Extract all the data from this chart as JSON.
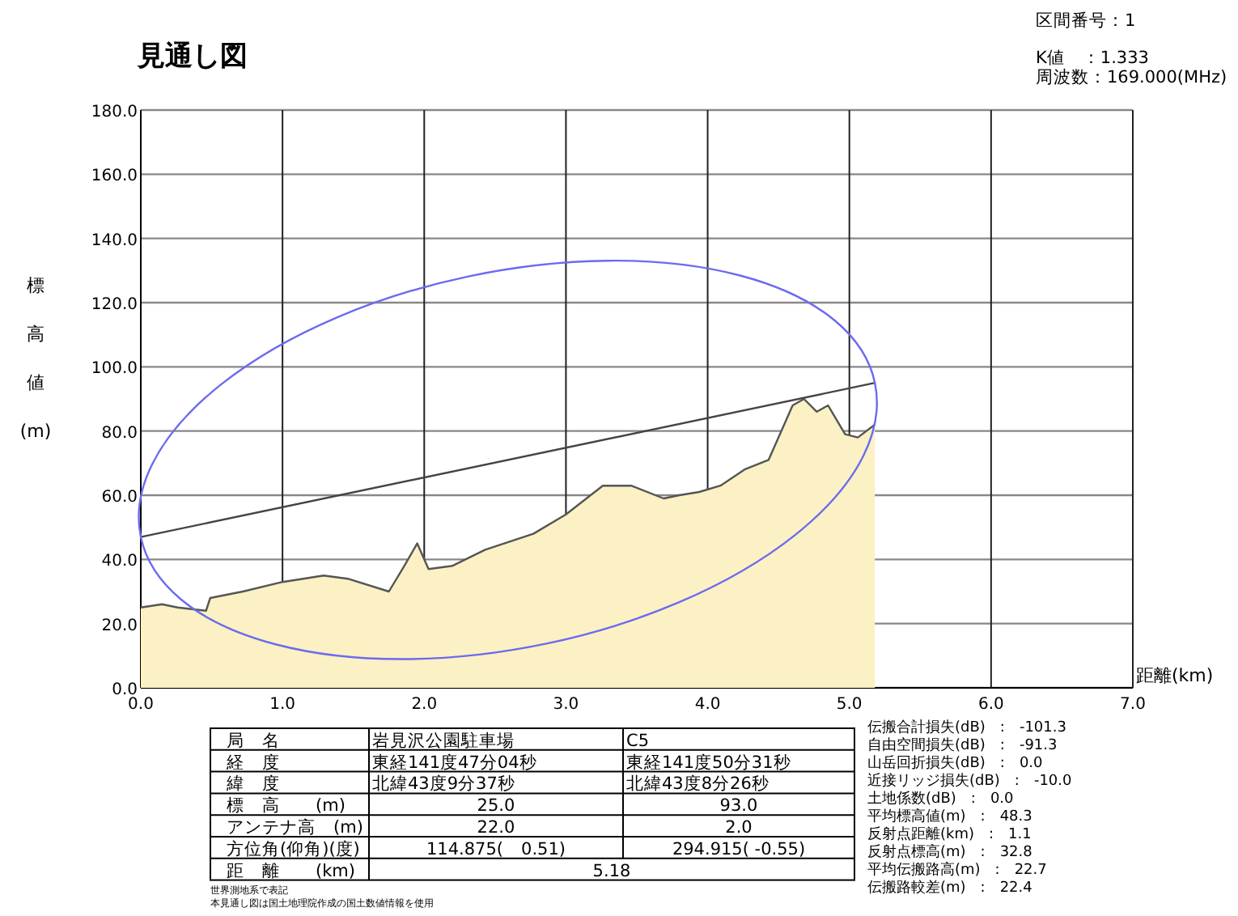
{
  "chart_data": {
    "type": "line",
    "title": "見通し図",
    "xlabel": "距離(km)",
    "ylabel": "標高値(m)",
    "xlim": [
      0,
      7
    ],
    "ylim": [
      0,
      180
    ],
    "xticks": [
      {
        "value": 0,
        "label": "0.0"
      },
      {
        "value": 1,
        "label": "1.0"
      },
      {
        "value": 2,
        "label": "2.0"
      },
      {
        "value": 3,
        "label": "3.0"
      },
      {
        "value": 4,
        "label": "4.0"
      },
      {
        "value": 5,
        "label": "5.0"
      },
      {
        "value": 6,
        "label": "6.0"
      },
      {
        "value": 7,
        "label": "7.0"
      }
    ],
    "yticks": [
      {
        "value": 0,
        "label": "0.0"
      },
      {
        "value": 20,
        "label": "20.0"
      },
      {
        "value": 40,
        "label": "40.0"
      },
      {
        "value": 60,
        "label": "60.0"
      },
      {
        "value": 80,
        "label": "80.0"
      },
      {
        "value": 100,
        "label": "100.0"
      },
      {
        "value": 120,
        "label": "120.0"
      },
      {
        "value": 140,
        "label": "140.0"
      },
      {
        "value": 160,
        "label": "160.0"
      },
      {
        "value": 180,
        "label": "180.0"
      }
    ],
    "grid": true,
    "series": [
      {
        "type": "area",
        "color": "#555555",
        "x": [
          0,
          0.15,
          0.26,
          0.46,
          0.49,
          0.72,
          1.0,
          1.29,
          1.46,
          1.75,
          1.86,
          1.95,
          2.03,
          2.2,
          2.43,
          2.77,
          3.0,
          3.26,
          3.46,
          3.69,
          3.8,
          3.94,
          4.09,
          4.26,
          4.43,
          4.6,
          4.68,
          4.77,
          4.85,
          4.97,
          5.06,
          5.18
        ],
        "values": [
          25,
          26,
          25,
          24,
          28,
          30,
          33,
          35,
          34,
          30,
          38,
          45,
          37,
          38,
          43,
          48,
          54,
          63,
          63,
          59,
          60,
          61,
          63,
          68,
          71,
          88,
          90,
          86,
          88,
          79,
          78,
          82
        ]
      },
      {
        "color": "#444444",
        "x": [
          0,
          5.18
        ],
        "values": [
          47,
          95
        ]
      }
    ],
    "annotations": [
      "区間番号：1",
      "K値　：1.333",
      "周波数：169.000(MHz)",
      "局　名",
      "岩見沢公園駐車場",
      "C5",
      "経　度",
      "東経141度47分04秒",
      "東経141度50分31秒",
      "緯　度",
      "北緯43度9分37秒",
      "北緯43度8分26秒",
      "標　高　　(m)",
      "25.0",
      "93.0",
      "アンテナ高　(m)",
      "22.0",
      "2.0",
      "方位角(仰角)(度)",
      "114.875(　0.51)",
      "294.915( -0.55)",
      "距　離　　(km)",
      "5.18",
      "伝搬合計損失(dB)　:　-101.3",
      "自由空間損失(dB)　:　-91.3",
      "山岳回折損失(dB)　:　0.0",
      "近接リッジ損失(dB)　:　-10.0",
      "土地係数(dB)　:　0.0",
      "平均標高値(m)　:　48.3",
      "反射点距離(km)　:　1.1",
      "反射点標高(m)　:　32.8",
      "平均伝搬路高(m)　:　22.7",
      "伝搬路較差(m)　:　22.4",
      "世界測地系で表記",
      "本見通し図は国土地理院作成の国土数値情報を使用"
    ]
  }
}
